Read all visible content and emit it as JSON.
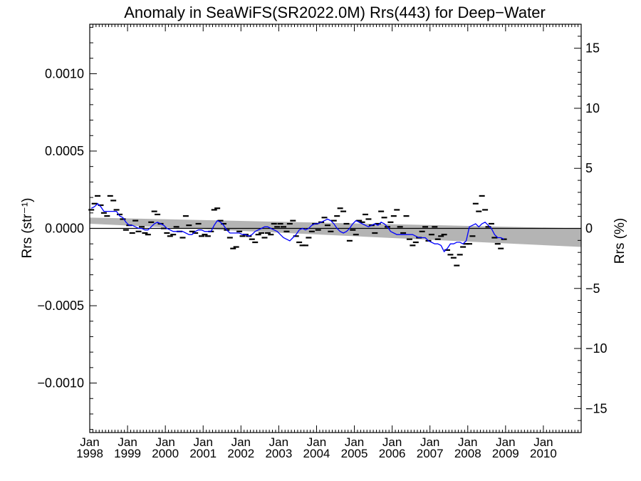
{
  "chart_data": {
    "type": "scatter",
    "title": "Anomaly in SeaWiFS(SR2022.0M) Rrs(443) for Deep−Water",
    "ylabel_left": "Rrs (str⁻¹)",
    "ylabel_right": "Rrs (%)",
    "x_start_year": 1998,
    "x_end_year": 2011,
    "x_ticks": [
      {
        "month": "Jan",
        "year": "1998"
      },
      {
        "month": "Jan",
        "year": "1999"
      },
      {
        "month": "Jan",
        "year": "2000"
      },
      {
        "month": "Jan",
        "year": "2001"
      },
      {
        "month": "Jan",
        "year": "2002"
      },
      {
        "month": "Jan",
        "year": "2003"
      },
      {
        "month": "Jan",
        "year": "2004"
      },
      {
        "month": "Jan",
        "year": "2005"
      },
      {
        "month": "Jan",
        "year": "2006"
      },
      {
        "month": "Jan",
        "year": "2007"
      },
      {
        "month": "Jan",
        "year": "2008"
      },
      {
        "month": "Jan",
        "year": "2009"
      },
      {
        "month": "Jan",
        "year": "2010"
      }
    ],
    "ylim_left": [
      -0.00132,
      0.00132
    ],
    "yticks_left": [
      {
        "value": 0.001,
        "label": "0.0010"
      },
      {
        "value": 0.0005,
        "label": "0.0005"
      },
      {
        "value": 0.0,
        "label": "0.0000"
      },
      {
        "value": -0.0005,
        "label": "−0.0005"
      },
      {
        "value": -0.001,
        "label": "−0.0010"
      }
    ],
    "ylim_right": [
      -17.0,
      17.0
    ],
    "yticks_right": [
      {
        "value": 15,
        "label": "15"
      },
      {
        "value": 10,
        "label": "10"
      },
      {
        "value": 5,
        "label": "5"
      },
      {
        "value": 0,
        "label": "0"
      },
      {
        "value": -5,
        "label": "−5"
      },
      {
        "value": -10,
        "label": "−10"
      },
      {
        "value": -15,
        "label": "−15"
      }
    ],
    "monthly_anomaly": [
      0.00012,
      0.00016,
      0.00021,
      0.00015,
      0.0001,
      8e-05,
      0.00021,
      0.00018,
      0.00012,
      9e-05,
      6e-05,
      -1e-05,
      2e-05,
      -3e-05,
      5e-05,
      -2e-05,
      1e-05,
      -3e-05,
      -4e-05,
      4e-05,
      0.00011,
      9e-05,
      3e-05,
      0.0,
      -3e-05,
      -5e-05,
      -4e-05,
      1e-05,
      -2e-05,
      -6e-05,
      8e-05,
      2e-05,
      -2e-05,
      -3e-05,
      3e-05,
      -5e-05,
      -4e-05,
      -5e-05,
      -2e-05,
      0.00012,
      0.00013,
      5e-05,
      3e-05,
      -1e-05,
      -6e-05,
      -0.00013,
      -0.00012,
      -2e-05,
      -5e-05,
      -4e-05,
      -5e-05,
      -7e-05,
      -9e-05,
      -4e-05,
      -3e-05,
      -6e-05,
      -3e-05,
      -4e-05,
      3e-05,
      1e-05,
      3e-05,
      1e-05,
      -2e-05,
      3e-05,
      5e-05,
      -5e-05,
      -9e-05,
      -0.00011,
      -0.00011,
      -6e-05,
      -2e-05,
      3e-05,
      -1e-05,
      4e-05,
      7e-05,
      2e-05,
      -2e-05,
      5e-05,
      8e-05,
      0.00013,
      0.00011,
      3e-05,
      -8e-05,
      -1e-05,
      -4e-05,
      5e-05,
      4e-05,
      9e-05,
      6e-05,
      2e-05,
      -3e-05,
      3e-05,
      0.00011,
      7e-05,
      1e-05,
      4e-05,
      8e-05,
      0.00012,
      1e-05,
      -3e-05,
      8e-05,
      -7e-05,
      -0.00011,
      -9e-05,
      -6e-05,
      -2e-05,
      1e-05,
      -8e-05,
      -4e-05,
      1e-05,
      -7e-05,
      -5e-05,
      -4e-05,
      -0.00014,
      -0.00017,
      -0.00019,
      -0.00024,
      -0.00017,
      -0.00012,
      -0.0001,
      -0.0001,
      -5e-05,
      0.00016,
      0.00011,
      0.00021,
      0.00012,
      1e-05,
      3e-05,
      -6e-05,
      -0.0001,
      -0.00013,
      -7e-05
    ],
    "running_mean": [
      0.00013,
      0.00014,
      0.00016,
      0.00014,
      0.00011,
      0.00011,
      0.00011,
      0.00011,
      0.00011,
      8e-05,
      7e-05,
      4e-05,
      2e-05,
      2e-05,
      1e-05,
      0.0,
      0.0,
      -1e-05,
      -1e-05,
      1e-05,
      3e-05,
      4e-05,
      3e-05,
      2e-05,
      0.0,
      -1e-05,
      -2e-05,
      -2e-05,
      -2e-05,
      -2e-05,
      -3e-05,
      -4e-05,
      -4e-05,
      -2e-05,
      -1e-05,
      -1e-05,
      -2e-05,
      -2e-05,
      -2e-05,
      2e-05,
      5e-05,
      4e-05,
      2e-05,
      -1e-05,
      -3e-05,
      -3e-05,
      -3e-05,
      -3e-05,
      -4e-05,
      -4e-05,
      -5e-05,
      -4e-05,
      -2e-05,
      -1e-05,
      0.0,
      1e-05,
      1e-05,
      0.0,
      -1e-05,
      -2e-05,
      -4e-05,
      -6e-05,
      -7e-05,
      -8e-05,
      -6e-05,
      -4e-05,
      -1e-05,
      0.0,
      -1e-05,
      0.0,
      2e-05,
      3e-05,
      3e-05,
      4e-05,
      5e-05,
      6e-05,
      5e-05,
      3e-05,
      0.0,
      -2e-05,
      -3e-05,
      -2e-05,
      0.0,
      3e-05,
      5e-05,
      4e-05,
      3e-05,
      2e-05,
      1e-05,
      2e-05,
      3e-05,
      2e-05,
      4e-05,
      3e-05,
      1e-05,
      -2e-05,
      -3e-05,
      -4e-05,
      -4e-05,
      -4e-05,
      -4e-05,
      -4e-05,
      -4e-05,
      -5e-05,
      -6e-05,
      -6e-05,
      -6e-05,
      -8e-05,
      -9e-05,
      -0.0001,
      -0.0001,
      -0.00011,
      -0.00015,
      -0.00013,
      -0.0001,
      -0.0001,
      -9e-05,
      -9e-05,
      -0.0001,
      -8e-05,
      1e-05,
      2e-05,
      3e-05,
      1e-05,
      3e-05,
      4e-05,
      2e-05,
      0.0,
      -4e-05,
      -6e-05,
      -6e-05,
      -7e-05
    ],
    "trend_band": {
      "start_upper": 7e-05,
      "start_lower": 3e-05,
      "end_upper": 0.0,
      "end_lower": -0.00012
    },
    "zero_line": 0.0,
    "colors": {
      "axis": "#000000",
      "running_mean": "#0000ff",
      "trend_band": "#b4b4b4",
      "monthly_marker": "#000000"
    }
  }
}
